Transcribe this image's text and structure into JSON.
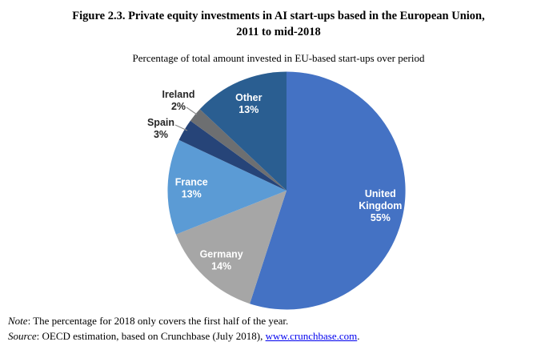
{
  "figure": {
    "title_line1": "Figure 2.3. Private equity investments in AI start-ups based in the European Union,",
    "title_line2": "2011 to mid-2018",
    "subtitle": "Percentage of total amount invested in EU-based start-ups over period"
  },
  "chart_data": {
    "type": "pie",
    "title": "Percentage of total amount invested in EU-based start-ups over period",
    "unit": "%",
    "total": 100,
    "start_angle_deg": 0,
    "direction": "clockwise",
    "legend": "none",
    "slices": [
      {
        "label": "United Kingdom",
        "value": 55,
        "display_lines": [
          "United",
          "Kingdom",
          "55%"
        ],
        "color": "#4472C4",
        "label_position": "inside",
        "label_color": "#FFFFFF"
      },
      {
        "label": "Germany",
        "value": 14,
        "display_lines": [
          "Germany",
          "14%"
        ],
        "color": "#A6A6A6",
        "label_position": "inside",
        "label_color": "#FFFFFF"
      },
      {
        "label": "France",
        "value": 13,
        "display_lines": [
          "France",
          "13%"
        ],
        "color": "#5B9BD5",
        "label_position": "inside",
        "label_color": "#FFFFFF"
      },
      {
        "label": "Spain",
        "value": 3,
        "display_lines": [
          "Spain",
          "3%"
        ],
        "color": "#264478",
        "label_position": "outside",
        "label_color": "#262626",
        "label_xy": [
          201,
          160
        ],
        "leader": [
          [
            219,
            156
          ],
          [
            234,
            163
          ]
        ]
      },
      {
        "label": "Ireland",
        "value": 2,
        "display_lines": [
          "Ireland",
          "2%"
        ],
        "color": "#6D6F71",
        "label_position": "outside",
        "label_color": "#262626",
        "label_xy": [
          223,
          125
        ],
        "leader": [
          [
            233,
            134
          ],
          [
            246,
            143
          ]
        ]
      },
      {
        "label": "Other",
        "value": 13,
        "display_lines": [
          "Other",
          "13%"
        ],
        "color": "#2A5E91",
        "label_position": "inside",
        "label_color": "#FFFFFF"
      }
    ]
  },
  "note": {
    "prefix": "Note",
    "text": ": The percentage for 2018 only covers the first half of the year."
  },
  "source": {
    "prefix": "Source",
    "text": ": OECD estimation, based on Crunchbase (July 2018), ",
    "link": "www.crunchbase.com",
    "suffix": "."
  }
}
